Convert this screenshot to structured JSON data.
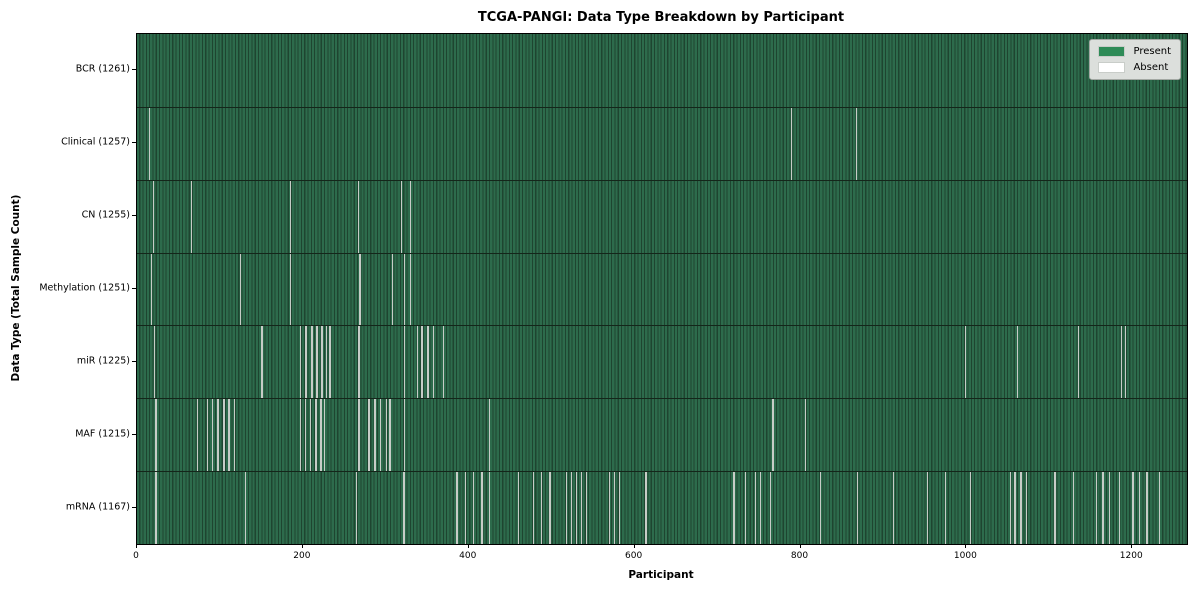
{
  "chart_data": {
    "type": "heatmap",
    "subtype": "presence-absence-matrix",
    "title": "TCGA-PANGI: Data Type Breakdown by Participant",
    "xlabel": "Participant",
    "ylabel": "Data Type (Total Sample Count)",
    "x_ticks": [
      0,
      200,
      400,
      600,
      800,
      1000,
      1200
    ],
    "x_range": [
      0,
      1266
    ],
    "total_participants": 1261,
    "grid": false,
    "legend_position": "upper right",
    "legend": [
      {
        "label": "Present",
        "color": "#2e8b57"
      },
      {
        "label": "Absent",
        "color": "#ffffff"
      }
    ],
    "colors": {
      "present_stripe_light": "#2d6b4c",
      "present_stripe_dark": "#1e4530",
      "absent_line": "#c7ccc7",
      "row_separator": "#14261a",
      "legend_background": "#dcdfdc"
    },
    "rows": [
      {
        "name": "BCR",
        "label": "BCR (1261)",
        "present_count": 1261,
        "absent_count": 0,
        "absent_positions": []
      },
      {
        "name": "Clinical",
        "label": "Clinical (1257)",
        "present_count": 1257,
        "absent_count": 4,
        "absent_positions": [
          14,
          788,
          867
        ]
      },
      {
        "name": "CN",
        "label": "CN (1255)",
        "present_count": 1255,
        "absent_count": 6,
        "absent_positions": [
          19,
          65,
          184,
          266,
          318,
          329
        ]
      },
      {
        "name": "Methylation",
        "label": "Methylation (1251)",
        "present_count": 1251,
        "absent_count": 10,
        "absent_positions": [
          17,
          124,
          184,
          268,
          307,
          322,
          329
        ]
      },
      {
        "name": "miR",
        "label": "miR (1225)",
        "present_count": 1225,
        "absent_count": 36,
        "absent_positions": [
          20,
          150,
          196,
          203,
          210,
          216,
          222,
          228,
          232,
          267,
          322,
          337,
          343,
          350,
          357,
          369,
          998,
          1061,
          1134,
          1186,
          1191
        ]
      },
      {
        "name": "MAF",
        "label": "MAF (1215)",
        "present_count": 1215,
        "absent_count": 46,
        "absent_positions": [
          22,
          72,
          84,
          90,
          97,
          104,
          110,
          117,
          196,
          202,
          208,
          215,
          221,
          225,
          267,
          279,
          286,
          293,
          300,
          304,
          322,
          424,
          766,
          805
        ]
      },
      {
        "name": "mRNA",
        "label": "mRNA (1167)",
        "present_count": 1167,
        "absent_count": 94,
        "absent_positions": [
          22,
          130,
          264,
          321,
          385,
          395,
          405,
          415,
          424,
          459,
          477,
          487,
          497,
          517,
          523,
          529,
          535,
          541,
          569,
          575,
          581,
          613,
          719,
          733,
          745,
          751,
          763,
          823,
          868,
          911,
          952,
          974,
          1004,
          1052,
          1058,
          1065,
          1072,
          1106,
          1128,
          1156,
          1164,
          1172,
          1184,
          1200,
          1208,
          1217,
          1232
        ]
      }
    ]
  }
}
